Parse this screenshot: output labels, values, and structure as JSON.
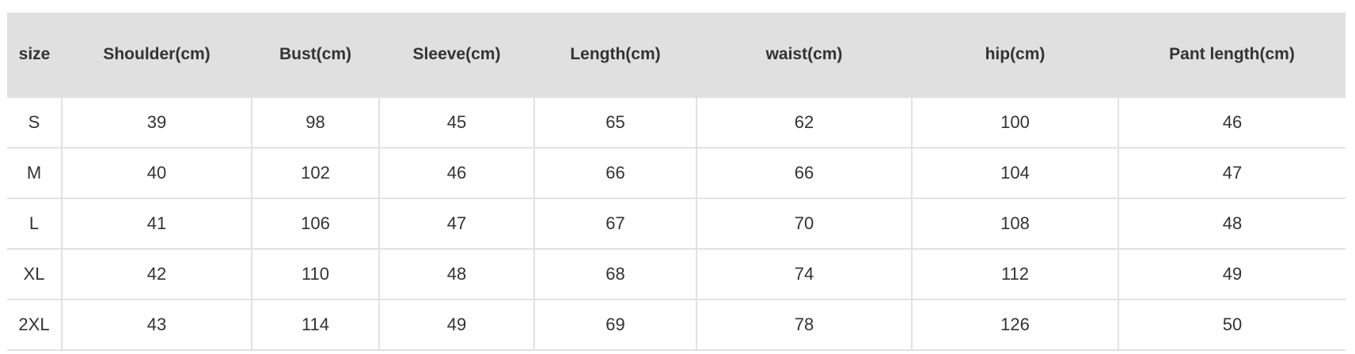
{
  "table": {
    "headers": [
      "size",
      "Shoulder(cm)",
      "Bust(cm)",
      "Sleeve(cm)",
      "Length(cm)",
      "waist(cm)",
      "hip(cm)",
      "Pant length(cm)"
    ],
    "rows": [
      [
        "S",
        "39",
        "98",
        "45",
        "65",
        "62",
        "100",
        "46"
      ],
      [
        "M",
        "40",
        "102",
        "46",
        "66",
        "66",
        "104",
        "47"
      ],
      [
        "L",
        "41",
        "106",
        "47",
        "67",
        "70",
        "108",
        "48"
      ],
      [
        "XL",
        "42",
        "110",
        "48",
        "68",
        "74",
        "112",
        "49"
      ],
      [
        "2XL",
        "43",
        "114",
        "49",
        "69",
        "78",
        "126",
        "50"
      ]
    ]
  },
  "colors": {
    "header_bg": "#e0e0e0",
    "border": "#e2e2e2",
    "text": "#333333"
  }
}
